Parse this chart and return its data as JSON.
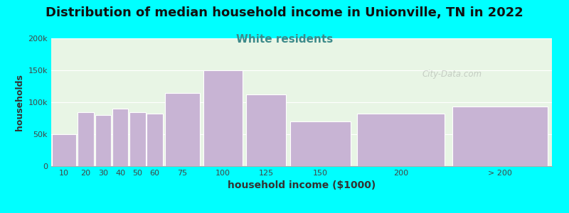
{
  "title": "Distribution of median household income in Unionville, TN in 2022",
  "subtitle": "White residents",
  "xlabel": "household income ($1000)",
  "ylabel": "households",
  "background_color": "#00FFFF",
  "bar_color": "#c8b4d4",
  "bar_edge_color": "#ffffff",
  "categories": [
    "10",
    "20",
    "30",
    "40",
    "50",
    "60",
    "75",
    "100",
    "125",
    "150",
    "200",
    "> 200"
  ],
  "x_edges": [
    0,
    15,
    25,
    35,
    45,
    55,
    65,
    87,
    112,
    137,
    175,
    230,
    290
  ],
  "values": [
    50000,
    85000,
    80000,
    90000,
    85000,
    82000,
    115000,
    150000,
    112000,
    70000,
    82000,
    93000
  ],
  "ylim": [
    0,
    200000
  ],
  "yticks": [
    0,
    50000,
    100000,
    150000,
    200000
  ],
  "ytick_labels": [
    "0",
    "50k",
    "100k",
    "150k",
    "200k"
  ],
  "title_fontsize": 13,
  "subtitle_fontsize": 11,
  "subtitle_color": "#3d8a8a",
  "watermark": "City-Data.com",
  "plot_bg_start": "#e8f5e5",
  "plot_bg_end": "#f5f5f0"
}
